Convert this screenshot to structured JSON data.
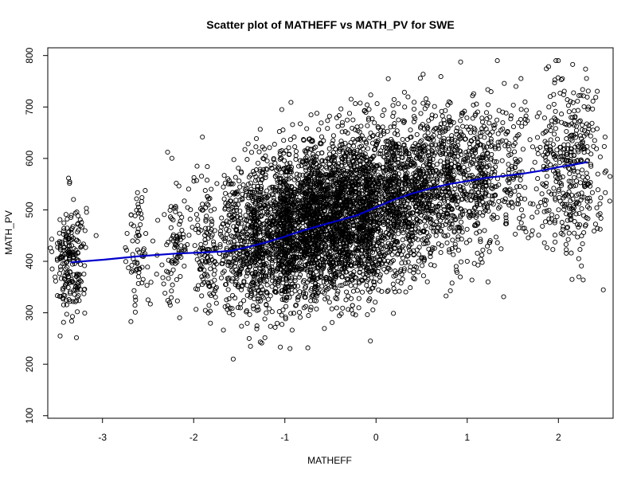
{
  "chart_data": {
    "type": "scatter",
    "title": "Scatter plot of MATHEFF vs MATH_PV for SWE",
    "xlabel": "MATHEFF",
    "ylabel": "MATH_PV",
    "xlim": [
      -3.6,
      2.6
    ],
    "ylim": [
      95,
      815
    ],
    "xticks": [
      -3,
      -2,
      -1,
      0,
      1,
      2
    ],
    "yticks": [
      100,
      200,
      300,
      400,
      500,
      600,
      700,
      800
    ],
    "grid": false,
    "point_marker": "open-circle",
    "point_color": "#000000",
    "smooth_line_color": "#0000cc",
    "clusters": [
      {
        "x": -3.36,
        "x_spread": 0.09,
        "y_mean": 405,
        "y_sd": 58,
        "n": 220
      },
      {
        "x": -2.6,
        "x_spread": 0.06,
        "y_mean": 420,
        "y_sd": 60,
        "n": 70
      },
      {
        "x": -2.2,
        "x_spread": 0.08,
        "y_mean": 430,
        "y_sd": 65,
        "n": 90
      },
      {
        "x": -1.85,
        "x_spread": 0.08,
        "y_mean": 430,
        "y_sd": 70,
        "n": 140
      },
      {
        "x": -1.55,
        "x_spread": 0.08,
        "y_mean": 440,
        "y_sd": 70,
        "n": 220
      },
      {
        "x": -1.3,
        "x_spread": 0.08,
        "y_mean": 445,
        "y_sd": 75,
        "n": 420
      },
      {
        "x": -1.0,
        "x_spread": 0.1,
        "y_mean": 460,
        "y_sd": 75,
        "n": 700
      },
      {
        "x": -0.7,
        "x_spread": 0.1,
        "y_mean": 475,
        "y_sd": 75,
        "n": 800
      },
      {
        "x": -0.4,
        "x_spread": 0.1,
        "y_mean": 490,
        "y_sd": 75,
        "n": 800
      },
      {
        "x": -0.1,
        "x_spread": 0.1,
        "y_mean": 500,
        "y_sd": 75,
        "n": 700
      },
      {
        "x": 0.2,
        "x_spread": 0.1,
        "y_mean": 520,
        "y_sd": 75,
        "n": 500
      },
      {
        "x": 0.5,
        "x_spread": 0.1,
        "y_mean": 540,
        "y_sd": 75,
        "n": 420
      },
      {
        "x": 0.8,
        "x_spread": 0.1,
        "y_mean": 555,
        "y_sd": 75,
        "n": 330
      },
      {
        "x": 1.15,
        "x_spread": 0.12,
        "y_mean": 560,
        "y_sd": 75,
        "n": 300
      },
      {
        "x": 1.5,
        "x_spread": 0.08,
        "y_mean": 570,
        "y_sd": 75,
        "n": 90
      },
      {
        "x": 2.1,
        "x_spread": 0.22,
        "y_mean": 580,
        "y_sd": 85,
        "n": 420
      }
    ],
    "smooth_line": [
      {
        "x": -3.35,
        "y": 398
      },
      {
        "x": -3.0,
        "y": 403
      },
      {
        "x": -2.6,
        "y": 410
      },
      {
        "x": -2.2,
        "y": 415
      },
      {
        "x": -1.8,
        "y": 418
      },
      {
        "x": -1.6,
        "y": 420
      },
      {
        "x": -1.4,
        "y": 428
      },
      {
        "x": -1.2,
        "y": 437
      },
      {
        "x": -1.0,
        "y": 448
      },
      {
        "x": -0.8,
        "y": 460
      },
      {
        "x": -0.6,
        "y": 470
      },
      {
        "x": -0.4,
        "y": 480
      },
      {
        "x": -0.2,
        "y": 490
      },
      {
        "x": 0.0,
        "y": 505
      },
      {
        "x": 0.2,
        "y": 520
      },
      {
        "x": 0.4,
        "y": 532
      },
      {
        "x": 0.6,
        "y": 542
      },
      {
        "x": 0.8,
        "y": 550
      },
      {
        "x": 1.0,
        "y": 556
      },
      {
        "x": 1.2,
        "y": 562
      },
      {
        "x": 1.4,
        "y": 566
      },
      {
        "x": 1.6,
        "y": 570
      },
      {
        "x": 1.8,
        "y": 576
      },
      {
        "x": 2.0,
        "y": 583
      },
      {
        "x": 2.2,
        "y": 589
      },
      {
        "x": 2.32,
        "y": 593
      }
    ]
  }
}
